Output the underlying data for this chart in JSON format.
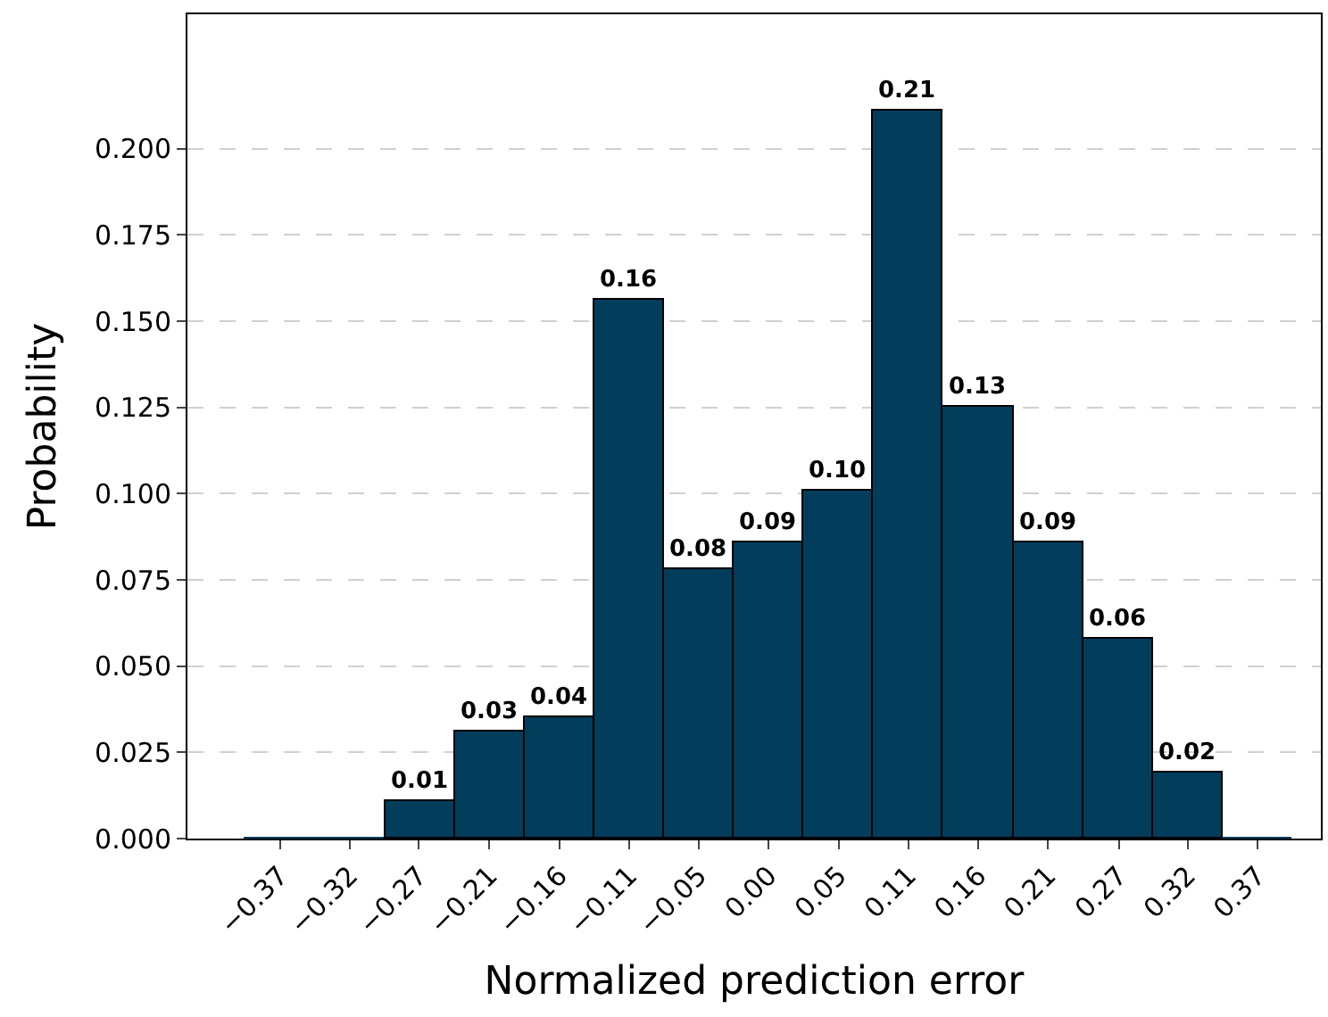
{
  "chart_data": {
    "type": "histogram",
    "xlabel": "Normalized prediction error",
    "ylabel": "Probability",
    "bins": [
      -0.3964,
      -0.3436,
      -0.2907,
      -0.2379,
      -0.185,
      -0.1321,
      -0.0793,
      -0.0264,
      0.0264,
      0.0793,
      0.1321,
      0.185,
      0.2379,
      0.2907,
      0.3436,
      0.3964
    ],
    "values": [
      0,
      0,
      0.011,
      0.031,
      0.035,
      0.156,
      0.078,
      0.086,
      0.101,
      0.211,
      0.125,
      0.086,
      0.058,
      0.019,
      0
    ],
    "value_labels": [
      null,
      null,
      "0.01",
      "0.03",
      "0.04",
      "0.16",
      "0.08",
      "0.09",
      "0.10",
      "0.21",
      "0.13",
      "0.09",
      "0.06",
      "0.02",
      null
    ],
    "color": "#033d5c",
    "xlim": [
      -0.44,
      0.418
    ],
    "ylim": [
      0,
      0.239
    ],
    "xticks": [
      {
        "value": -0.37,
        "label": "−0.37"
      },
      {
        "value": -0.3171,
        "label": "−0.32"
      },
      {
        "value": -0.265,
        "label": "−0.27"
      },
      {
        "value": -0.2114,
        "label": "−0.21"
      },
      {
        "value": -0.1586,
        "label": "−0.16"
      },
      {
        "value": -0.1057,
        "label": "−0.11"
      },
      {
        "value": -0.0529,
        "label": "−0.05"
      },
      {
        "value": 0,
        "label": "0.00"
      },
      {
        "value": 0.0529,
        "label": "0.05"
      },
      {
        "value": 0.1057,
        "label": "0.11"
      },
      {
        "value": 0.1586,
        "label": "0.16"
      },
      {
        "value": 0.2114,
        "label": "0.21"
      },
      {
        "value": 0.265,
        "label": "0.27"
      },
      {
        "value": 0.3171,
        "label": "0.32"
      },
      {
        "value": 0.37,
        "label": "0.37"
      }
    ],
    "yticks": [
      {
        "value": 0,
        "label": "0.000"
      },
      {
        "value": 0.025,
        "label": "0.025"
      },
      {
        "value": 0.05,
        "label": "0.050"
      },
      {
        "value": 0.075,
        "label": "0.075"
      },
      {
        "value": 0.1,
        "label": "0.100"
      },
      {
        "value": 0.125,
        "label": "0.125"
      },
      {
        "value": 0.15,
        "label": "0.150"
      },
      {
        "value": 0.175,
        "label": "0.175"
      },
      {
        "value": 0.2,
        "label": "0.200"
      }
    ],
    "grid": "y"
  }
}
